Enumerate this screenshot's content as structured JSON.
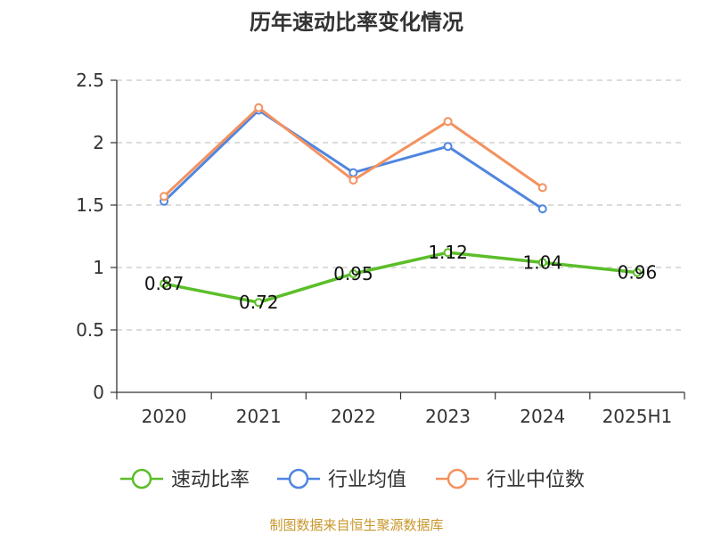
{
  "chart_data": {
    "type": "line",
    "title": "历年速动比率变化情况",
    "categories": [
      "2020",
      "2021",
      "2022",
      "2023",
      "2024",
      "2025H1"
    ],
    "series": [
      {
        "name": "速动比率",
        "color": "#5cbe2a",
        "values": [
          0.87,
          0.72,
          0.95,
          1.12,
          1.04,
          0.96
        ],
        "data_labels": [
          "0.87",
          "0.72",
          "0.95",
          "1.12",
          "1.04",
          "0.96"
        ]
      },
      {
        "name": "行业均值",
        "color": "#4f86df",
        "values": [
          1.53,
          2.26,
          1.76,
          1.97,
          1.47,
          null
        ]
      },
      {
        "name": "行业中位数",
        "color": "#f39260",
        "values": [
          1.57,
          2.28,
          1.7,
          2.17,
          1.64,
          null
        ]
      }
    ],
    "ylim": [
      0,
      2.5
    ],
    "yticks": [
      "0",
      "0.5",
      "1",
      "1.5",
      "2",
      "2.5"
    ],
    "ytick_values": [
      0,
      0.5,
      1,
      1.5,
      2,
      2.5
    ],
    "xlabel": "",
    "ylabel": "",
    "grid": "horizontal dashed",
    "legend_position": "bottom"
  },
  "source": "制图数据来自恒生聚源数据库"
}
